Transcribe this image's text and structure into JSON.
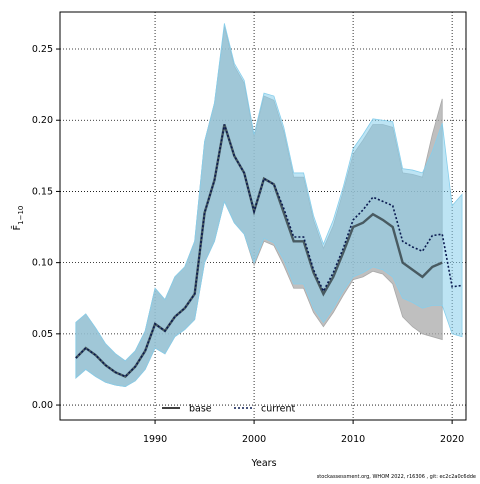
{
  "chart_data": {
    "type": "line",
    "ylabel": "F̄",
    "ylabel_sub": "1−10",
    "xlabel": "Years",
    "footer": "stockassessment.org, WHOM 2022, r16306 , git: ec2c2a0c6dde",
    "x": [
      1982,
      1983,
      1984,
      1985,
      1986,
      1987,
      1988,
      1989,
      1990,
      1991,
      1992,
      1993,
      1994,
      1995,
      1996,
      1997,
      1998,
      1999,
      2000,
      2001,
      2002,
      2003,
      2004,
      2005,
      2006,
      2007,
      2008,
      2009,
      2010,
      2011,
      2012,
      2013,
      2014,
      2015,
      2016,
      2017,
      2018,
      2019,
      2020,
      2021
    ],
    "xlim": [
      1980.4,
      2021.4
    ],
    "xticks": [
      1990,
      2000,
      2010,
      2020
    ],
    "ylim": [
      -0.0105,
      0.276
    ],
    "yticks": [
      {
        "value": 0,
        "label": "0.00"
      },
      0.05,
      {
        "value": 0.1,
        "label": "0.10"
      },
      0.15,
      {
        "value": 0.2,
        "label": "0.20"
      },
      0.25
    ],
    "grid": true,
    "legend": "bottom",
    "series": [
      {
        "name": "base",
        "color": "#000000",
        "band_color": "#a9a9a9",
        "values": [
          0.033,
          0.04,
          0.035,
          0.028,
          0.023,
          0.02,
          0.027,
          0.038,
          0.057,
          0.052,
          0.062,
          0.068,
          0.078,
          0.135,
          0.158,
          0.197,
          0.175,
          0.163,
          0.136,
          0.159,
          0.155,
          0.135,
          0.115,
          0.115,
          0.093,
          0.078,
          0.09,
          0.107,
          0.125,
          0.128,
          0.134,
          0.13,
          0.125,
          0.1,
          0.095,
          0.09,
          0.097,
          0.1,
          null,
          null
        ],
        "upper": [
          0.058,
          0.064,
          0.054,
          0.043,
          0.036,
          0.031,
          0.038,
          0.052,
          0.082,
          0.074,
          0.09,
          0.097,
          0.115,
          0.185,
          0.212,
          0.266,
          0.238,
          0.226,
          0.188,
          0.217,
          0.214,
          0.192,
          0.16,
          0.16,
          0.13,
          0.11,
          0.126,
          0.15,
          0.176,
          0.186,
          0.197,
          0.197,
          0.195,
          0.163,
          0.162,
          0.16,
          0.19,
          0.215,
          null,
          null
        ],
        "lower": [
          0.019,
          0.025,
          0.02,
          0.016,
          0.014,
          0.013,
          0.017,
          0.025,
          0.04,
          0.036,
          0.048,
          0.053,
          0.06,
          0.1,
          0.115,
          0.143,
          0.128,
          0.12,
          0.098,
          0.115,
          0.112,
          0.098,
          0.082,
          0.082,
          0.065,
          0.055,
          0.065,
          0.077,
          0.088,
          0.09,
          0.094,
          0.092,
          0.085,
          0.062,
          0.055,
          0.05,
          0.048,
          0.046,
          null,
          null
        ]
      },
      {
        "name": "current",
        "color": "#0a1a50",
        "band_color": "#87ceeb",
        "values": [
          0.033,
          0.04,
          0.035,
          0.028,
          0.023,
          0.02,
          0.027,
          0.038,
          0.057,
          0.052,
          0.062,
          0.068,
          0.078,
          0.135,
          0.158,
          0.197,
          0.175,
          0.163,
          0.136,
          0.159,
          0.155,
          0.138,
          0.118,
          0.118,
          0.095,
          0.08,
          0.093,
          0.11,
          0.13,
          0.137,
          0.146,
          0.143,
          0.14,
          0.115,
          0.111,
          0.108,
          0.119,
          0.12,
          0.083,
          0.084
        ],
        "upper": [
          0.058,
          0.064,
          0.054,
          0.043,
          0.036,
          0.031,
          0.038,
          0.052,
          0.082,
          0.074,
          0.09,
          0.097,
          0.115,
          0.185,
          0.212,
          0.268,
          0.24,
          0.228,
          0.19,
          0.219,
          0.217,
          0.195,
          0.163,
          0.163,
          0.133,
          0.113,
          0.13,
          0.153,
          0.18,
          0.19,
          0.201,
          0.2,
          0.199,
          0.166,
          0.165,
          0.163,
          0.178,
          0.198,
          0.14,
          0.148
        ],
        "lower": [
          0.019,
          0.025,
          0.02,
          0.016,
          0.014,
          0.013,
          0.017,
          0.025,
          0.04,
          0.036,
          0.048,
          0.053,
          0.06,
          0.1,
          0.115,
          0.143,
          0.128,
          0.12,
          0.1,
          0.117,
          0.114,
          0.102,
          0.085,
          0.085,
          0.068,
          0.058,
          0.068,
          0.08,
          0.09,
          0.093,
          0.097,
          0.095,
          0.09,
          0.075,
          0.072,
          0.068,
          0.07,
          0.07,
          0.05,
          0.048
        ]
      }
    ]
  }
}
